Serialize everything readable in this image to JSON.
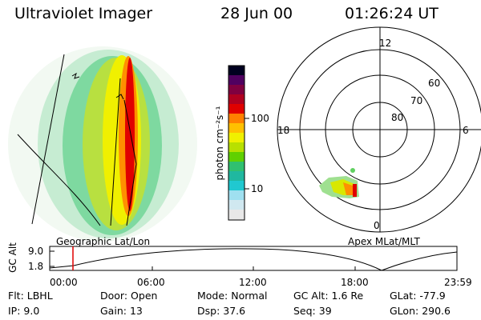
{
  "header": {
    "instrument": "Ultraviolet Imager",
    "date": "28 Jun 00",
    "time": "01:26:24 UT"
  },
  "geo_panel": {
    "label": "Geographic Lat/Lon"
  },
  "colorbar": {
    "label": "photon cm⁻²s⁻¹",
    "ticks": [
      "100",
      "10"
    ],
    "colors": [
      "#e8e8e8",
      "#9fe0f0",
      "#20c8d0",
      "#30c070",
      "#60d000",
      "#b8e000",
      "#f0f000",
      "#ffc000",
      "#ff8000",
      "#ff3000",
      "#e00000",
      "#b00020",
      "#800040",
      "#500060",
      "#200040",
      "#000020"
    ]
  },
  "polar_panel": {
    "label": "Apex  MLat/MLT",
    "mlt_labels": {
      "top": "12",
      "left": "18",
      "right": "6",
      "bottom": "0"
    },
    "lat_labels": [
      "60",
      "70",
      "80"
    ]
  },
  "altitude_plot": {
    "ylabel": "GC Alt",
    "yticks": [
      "9.0",
      "1.8"
    ],
    "xticks": [
      "00:00",
      "06:00",
      "12:00",
      "18:00",
      "23:59"
    ],
    "current_time_marker": "01:26"
  },
  "info": {
    "flt": {
      "label": "Flt:",
      "value": "LBHL"
    },
    "ip": {
      "label": "IP:",
      "value": "9.0"
    },
    "door": {
      "label": "Door:",
      "value": "Open"
    },
    "gain": {
      "label": "Gain:",
      "value": "13"
    },
    "mode": {
      "label": "Mode:",
      "value": "Normal"
    },
    "dsp": {
      "label": "Dsp:",
      "value": "37.6"
    },
    "gcalt": {
      "label": "GC Alt:",
      "value": "1.6 Re"
    },
    "seq": {
      "label": "Seq:",
      "value": "39"
    },
    "glat": {
      "label": "GLat:",
      "value": "-77.9"
    },
    "glon": {
      "label": "GLon:",
      "value": "290.6"
    }
  }
}
